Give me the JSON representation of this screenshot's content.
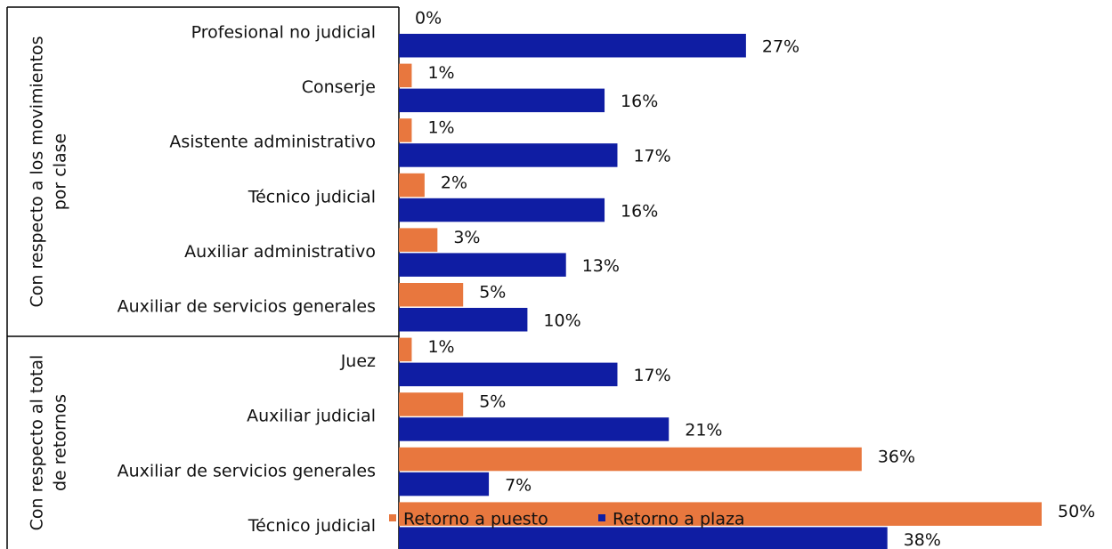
{
  "chart_data": {
    "type": "hbar",
    "categories": [
      "Profesional no judicial",
      "Conserje",
      "Asistente administrativo",
      "Técnico judicial",
      "Auxiliar administrativo",
      "Auxiliar de servicios generales",
      "Juez",
      "Auxiliar judicial",
      "Auxiliar de servicios generales",
      "Técnico judicial"
    ],
    "groups": [
      {
        "lines": [
          "Con respecto a los movimientos",
          "por clase"
        ]
      },
      {
        "lines": [
          "Con respecto al total",
          "de retornos"
        ]
      }
    ],
    "series": [
      {
        "name": "Retorno a puesto",
        "color": "#e8773e",
        "values": [
          0,
          1,
          1,
          2,
          3,
          5,
          1,
          5,
          36,
          50
        ],
        "value_labels": [
          "0%",
          "1%",
          "1%",
          "2%",
          "3%",
          "5%",
          "1%",
          "5%",
          "36%",
          "50%"
        ]
      },
      {
        "name": "Retorno a plaza",
        "color": "#0f1da3",
        "values": [
          27,
          16,
          17,
          16,
          13,
          10,
          17,
          21,
          7,
          38
        ],
        "value_labels": [
          "27%",
          "16%",
          "17%",
          "16%",
          "13%",
          "10%",
          "17%",
          "21%",
          "7%",
          "38%"
        ]
      }
    ],
    "xlim": [
      0,
      50
    ],
    "legend": "bottom"
  }
}
